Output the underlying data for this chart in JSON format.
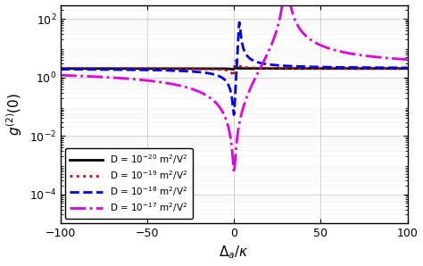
{
  "title": "",
  "xlabel": "$\\Delta_a/\\kappa$",
  "ylabel": "$g^{(2)}(0)$",
  "xlim": [
    -100,
    100
  ],
  "ylim": [
    1e-05,
    300.0
  ],
  "xticks": [
    -100,
    -50,
    0,
    50,
    100
  ],
  "yticks": [
    0.0001,
    0.01,
    1.0,
    100.0
  ],
  "background_color": "#ffffff",
  "lines": [
    {
      "U": 0.03,
      "label": "D = 10$^{-20}$ m$^2$/V$^2$",
      "color": "#000000",
      "linestyle": "-",
      "linewidth": 2.0
    },
    {
      "U": 0.3,
      "label": "D = 10$^{-19}$ m$^2$/V$^2$",
      "color": "#cc0000",
      "linestyle": ":",
      "linewidth": 2.0
    },
    {
      "U": 3.0,
      "label": "D = 10$^{-18}$ m$^2$/V$^2$",
      "color": "#0000ee",
      "linestyle": "--",
      "linewidth": 2.0
    },
    {
      "U": 30.0,
      "label": "D = 10$^{-17}$ m$^2$/V$^2$",
      "color": "#dd00dd",
      "linestyle": "-.",
      "linewidth": 2.0
    }
  ],
  "kappa": 1.0,
  "figsize": [
    4.74,
    2.98
  ],
  "dpi": 100
}
